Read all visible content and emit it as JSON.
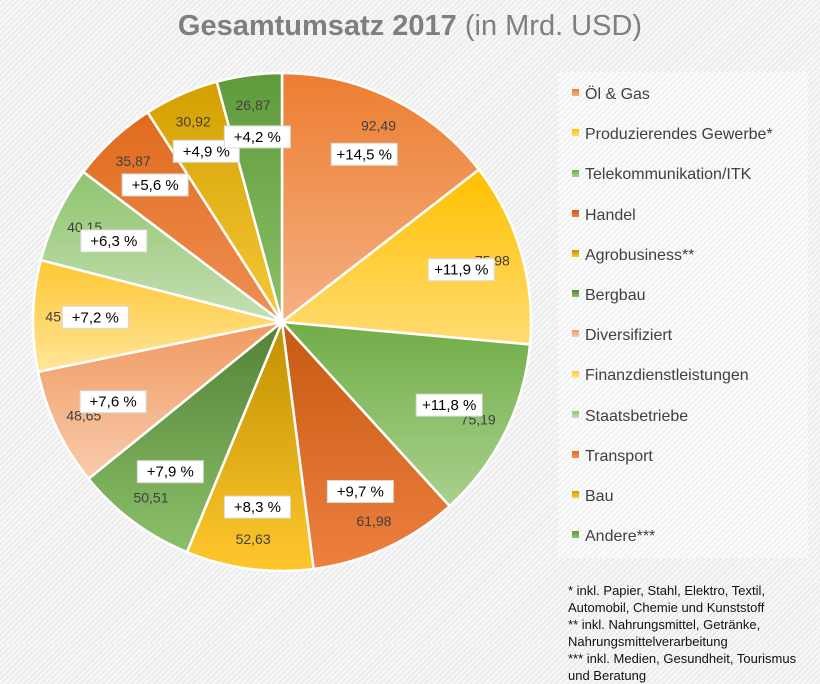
{
  "chart_data": {
    "type": "pie",
    "title": "Gesamtumsatz 2017",
    "subtitle": "(in Mrd. USD)",
    "legend_position": "right",
    "start_angle": "top, clockwise",
    "categories": [
      "Öl & Gas",
      "Produzierendes Gewerbe*",
      "Telekommunikation/ITK",
      "Handel",
      "Agrobusiness**",
      "Bergbau",
      "Diversifiziert",
      "Finanzdienstleistungen",
      "Staatsbetriebe",
      "Transport",
      "Bau",
      "Andere***"
    ],
    "values": [
      92.49,
      75.98,
      75.19,
      61.98,
      52.63,
      50.51,
      48.65,
      45.86,
      40.15,
      35.87,
      30.92,
      26.87
    ],
    "value_labels": [
      "92,49",
      "75,98",
      "75,19",
      "61,98",
      "52,63",
      "50,51",
      "48,65",
      "45,86",
      "40,15",
      "35,87",
      "30,92",
      "26,87"
    ],
    "share_labels": [
      "+14,5 %",
      "+11,9 %",
      "+11,8 %",
      "+9,7 %",
      "+8,3 %",
      "+7,9 %",
      "+7,6 %",
      "+7,2 %",
      "+6,3 %",
      "+5,6 %",
      "+4,9 %",
      "+4,2 %"
    ],
    "colors": [
      [
        "#ED7D31",
        "#F4B183"
      ],
      [
        "#FFC000",
        "#FFDC73"
      ],
      [
        "#70AD47",
        "#A9D18E"
      ],
      [
        "#C55A11",
        "#EE8040"
      ],
      [
        "#BF9000",
        "#FFC72C"
      ],
      [
        "#548235",
        "#8BC06A"
      ],
      [
        "#F09A60",
        "#F8CBAD"
      ],
      [
        "#FFC733",
        "#FFE699"
      ],
      [
        "#8FC46E",
        "#C5E0B4"
      ],
      [
        "#E06A1C",
        "#F09055"
      ],
      [
        "#D4A000",
        "#F4C838"
      ],
      [
        "#5E9A3A",
        "#8CC06A"
      ]
    ]
  },
  "footnotes": [
    "* inkl. Papier, Stahl, Elektro, Textil, Automobil, Chemie und Kunststoff",
    "** inkl. Nahrungsmittel, Getränke, Nahrungsmittelverarbeitung",
    "*** inkl. Medien, Gesundheit, Tourismus und Beratung"
  ]
}
